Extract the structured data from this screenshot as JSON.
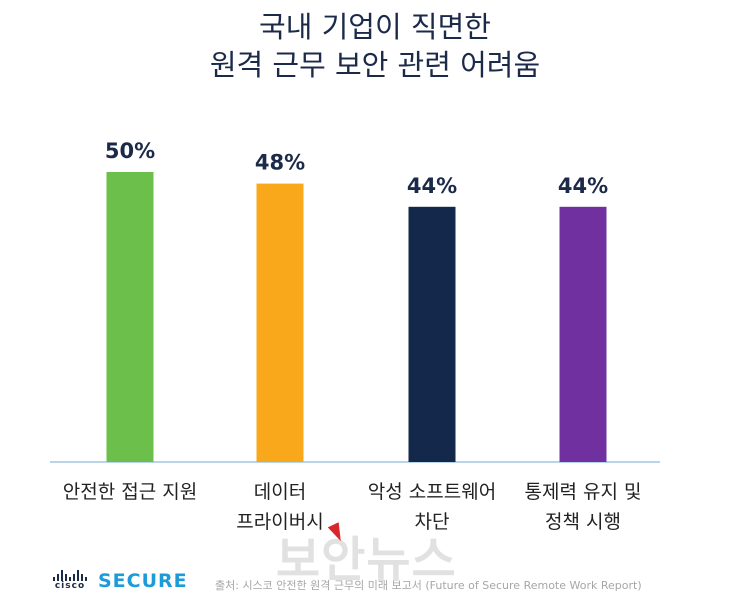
{
  "title_line1": "국내 기업이 직면한",
  "title_line2": "원격 근무 보안 관련 어려움",
  "chart_data": {
    "type": "bar",
    "title": "국내 기업이 직면한 원격 근무 보안 관련 어려움",
    "categories": [
      [
        "안전한 접근 지원"
      ],
      [
        "데이터",
        "프라이버시"
      ],
      [
        "악성 소프트웨어",
        "차단"
      ],
      [
        "통제력 유지 및",
        "정책 시행"
      ]
    ],
    "values": [
      50,
      48,
      44,
      44
    ],
    "value_labels": [
      "50%",
      "48%",
      "44%",
      "44%"
    ],
    "colors": [
      "#6cbf4a",
      "#f9a81c",
      "#14284b",
      "#7030a0"
    ],
    "axis_color": "#b9d5ea",
    "grid": false,
    "legend": "none"
  },
  "logo": {
    "brand": "cisco",
    "product": "SECURE",
    "brand_color": "#1c2a4a",
    "product_color": "#1b9bd7"
  },
  "source": "출처: 시스코 안전한 원격 근무의 미래 보고서 (Future of Secure Remote Work Report)",
  "watermark": "보안뉴스"
}
